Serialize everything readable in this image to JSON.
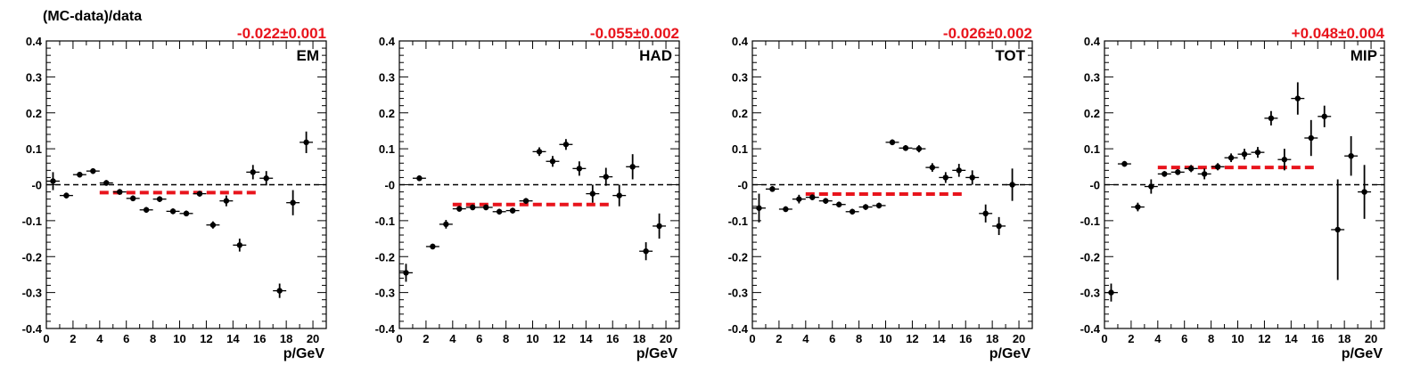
{
  "figure": {
    "ylabel": "(MC-data)/data",
    "colors": {
      "points": "#000000",
      "fit": "#e8141c",
      "zero_line": "#000000"
    }
  },
  "chart_data": [
    {
      "type": "scatter",
      "panel": "EM",
      "fit_label": "-0.022±0.001",
      "fit": {
        "value": -0.022,
        "x_range": [
          4,
          16
        ]
      },
      "xlabel": "p/GeV",
      "xlim": [
        0,
        21
      ],
      "ylim": [
        -0.4,
        0.4
      ],
      "x_ticks": [
        0,
        2,
        4,
        6,
        8,
        10,
        12,
        14,
        16,
        18,
        20
      ],
      "y_ticks": [
        "-0.4",
        "-0.3",
        "-0.2",
        "-0.1",
        "-0",
        "0.1",
        "0.2",
        "0.3",
        "0.4"
      ],
      "points": [
        {
          "x": 0.5,
          "y": 0.01,
          "err": 0.025
        },
        {
          "x": 1.5,
          "y": -0.03,
          "err": 0.008
        },
        {
          "x": 2.5,
          "y": 0.028,
          "err": 0.008
        },
        {
          "x": 3.5,
          "y": 0.038,
          "err": 0.008
        },
        {
          "x": 4.5,
          "y": 0.005,
          "err": 0.008
        },
        {
          "x": 5.5,
          "y": -0.02,
          "err": 0.008
        },
        {
          "x": 6.5,
          "y": -0.038,
          "err": 0.008
        },
        {
          "x": 7.5,
          "y": -0.07,
          "err": 0.008
        },
        {
          "x": 8.5,
          "y": -0.04,
          "err": 0.008
        },
        {
          "x": 9.5,
          "y": -0.074,
          "err": 0.008
        },
        {
          "x": 10.5,
          "y": -0.08,
          "err": 0.008
        },
        {
          "x": 11.5,
          "y": -0.025,
          "err": 0.008
        },
        {
          "x": 12.5,
          "y": -0.112,
          "err": 0.01
        },
        {
          "x": 13.5,
          "y": -0.045,
          "err": 0.015
        },
        {
          "x": 14.5,
          "y": -0.168,
          "err": 0.018
        },
        {
          "x": 15.5,
          "y": 0.035,
          "err": 0.02
        },
        {
          "x": 16.5,
          "y": 0.018,
          "err": 0.02
        },
        {
          "x": 17.5,
          "y": -0.295,
          "err": 0.02
        },
        {
          "x": 18.5,
          "y": -0.05,
          "err": 0.035
        },
        {
          "x": 19.5,
          "y": 0.118,
          "err": 0.03
        }
      ]
    },
    {
      "type": "scatter",
      "panel": "HAD",
      "fit_label": "-0.055±0.002",
      "fit": {
        "value": -0.055,
        "x_range": [
          4,
          16
        ]
      },
      "xlabel": "p/GeV",
      "xlim": [
        0,
        21
      ],
      "ylim": [
        -0.4,
        0.4
      ],
      "x_ticks": [
        0,
        2,
        4,
        6,
        8,
        10,
        12,
        14,
        16,
        18,
        20
      ],
      "y_ticks": [
        "-0.4",
        "-0.3",
        "-0.2",
        "-0.1",
        "-0",
        "0.1",
        "0.2",
        "0.3",
        "0.4"
      ],
      "points": [
        {
          "x": 0.5,
          "y": -0.245,
          "err": 0.025
        },
        {
          "x": 1.5,
          "y": 0.018,
          "err": 0.008
        },
        {
          "x": 2.5,
          "y": -0.172,
          "err": 0.008
        },
        {
          "x": 3.5,
          "y": -0.11,
          "err": 0.012
        },
        {
          "x": 4.5,
          "y": -0.067,
          "err": 0.008
        },
        {
          "x": 5.5,
          "y": -0.063,
          "err": 0.008
        },
        {
          "x": 6.5,
          "y": -0.063,
          "err": 0.008
        },
        {
          "x": 7.5,
          "y": -0.075,
          "err": 0.008
        },
        {
          "x": 8.5,
          "y": -0.072,
          "err": 0.008
        },
        {
          "x": 9.5,
          "y": -0.045,
          "err": 0.008
        },
        {
          "x": 10.5,
          "y": 0.092,
          "err": 0.012
        },
        {
          "x": 11.5,
          "y": 0.065,
          "err": 0.015
        },
        {
          "x": 12.5,
          "y": 0.112,
          "err": 0.015
        },
        {
          "x": 13.5,
          "y": 0.045,
          "err": 0.02
        },
        {
          "x": 14.5,
          "y": -0.025,
          "err": 0.025
        },
        {
          "x": 15.5,
          "y": 0.022,
          "err": 0.025
        },
        {
          "x": 16.5,
          "y": -0.03,
          "err": 0.03
        },
        {
          "x": 17.5,
          "y": 0.05,
          "err": 0.035
        },
        {
          "x": 18.5,
          "y": -0.185,
          "err": 0.025
        },
        {
          "x": 19.5,
          "y": -0.115,
          "err": 0.035
        }
      ]
    },
    {
      "type": "scatter",
      "panel": "TOT",
      "fit_label": "-0.026±0.002",
      "fit": {
        "value": -0.026,
        "x_range": [
          4,
          16
        ]
      },
      "xlabel": "p/GeV",
      "xlim": [
        0,
        21
      ],
      "ylim": [
        -0.4,
        0.4
      ],
      "x_ticks": [
        0,
        2,
        4,
        6,
        8,
        10,
        12,
        14,
        16,
        18,
        20
      ],
      "y_ticks": [
        "-0.4",
        "-0.3",
        "-0.2",
        "-0.1",
        "-0",
        "0.1",
        "0.2",
        "0.3",
        "0.4"
      ],
      "points": [
        {
          "x": 0.5,
          "y": -0.065,
          "err": 0.04
        },
        {
          "x": 1.5,
          "y": -0.012,
          "err": 0.008
        },
        {
          "x": 2.5,
          "y": -0.068,
          "err": 0.008
        },
        {
          "x": 3.5,
          "y": -0.04,
          "err": 0.012
        },
        {
          "x": 4.5,
          "y": -0.035,
          "err": 0.008
        },
        {
          "x": 5.5,
          "y": -0.045,
          "err": 0.008
        },
        {
          "x": 6.5,
          "y": -0.055,
          "err": 0.008
        },
        {
          "x": 7.5,
          "y": -0.075,
          "err": 0.008
        },
        {
          "x": 8.5,
          "y": -0.062,
          "err": 0.008
        },
        {
          "x": 9.5,
          "y": -0.058,
          "err": 0.008
        },
        {
          "x": 10.5,
          "y": 0.118,
          "err": 0.008
        },
        {
          "x": 11.5,
          "y": 0.102,
          "err": 0.008
        },
        {
          "x": 12.5,
          "y": 0.1,
          "err": 0.01
        },
        {
          "x": 13.5,
          "y": 0.048,
          "err": 0.012
        },
        {
          "x": 14.5,
          "y": 0.02,
          "err": 0.015
        },
        {
          "x": 15.5,
          "y": 0.04,
          "err": 0.018
        },
        {
          "x": 16.5,
          "y": 0.02,
          "err": 0.02
        },
        {
          "x": 17.5,
          "y": -0.08,
          "err": 0.025
        },
        {
          "x": 18.5,
          "y": -0.115,
          "err": 0.025
        },
        {
          "x": 19.5,
          "y": 0.0,
          "err": 0.045
        }
      ]
    },
    {
      "type": "scatter",
      "panel": "MIP",
      "fit_label": "+0.048±0.004",
      "fit": {
        "value": 0.048,
        "x_range": [
          4,
          16
        ]
      },
      "xlabel": "p/GeV",
      "xlim": [
        0,
        21
      ],
      "ylim": [
        -0.4,
        0.4
      ],
      "x_ticks": [
        0,
        2,
        4,
        6,
        8,
        10,
        12,
        14,
        16,
        18,
        20
      ],
      "y_ticks": [
        "-0.4",
        "-0.3",
        "-0.2",
        "-0.1",
        "-0",
        "0.1",
        "0.2",
        "0.3",
        "0.4"
      ],
      "points": [
        {
          "x": 0.5,
          "y": -0.3,
          "err": 0.025
        },
        {
          "x": 1.5,
          "y": 0.058,
          "err": 0.008
        },
        {
          "x": 2.5,
          "y": -0.062,
          "err": 0.012
        },
        {
          "x": 3.5,
          "y": -0.005,
          "err": 0.02
        },
        {
          "x": 4.5,
          "y": 0.03,
          "err": 0.008
        },
        {
          "x": 5.5,
          "y": 0.035,
          "err": 0.008
        },
        {
          "x": 6.5,
          "y": 0.045,
          "err": 0.01
        },
        {
          "x": 7.5,
          "y": 0.03,
          "err": 0.015
        },
        {
          "x": 8.5,
          "y": 0.05,
          "err": 0.01
        },
        {
          "x": 9.5,
          "y": 0.075,
          "err": 0.012
        },
        {
          "x": 10.5,
          "y": 0.085,
          "err": 0.015
        },
        {
          "x": 11.5,
          "y": 0.09,
          "err": 0.015
        },
        {
          "x": 12.5,
          "y": 0.185,
          "err": 0.02
        },
        {
          "x": 13.5,
          "y": 0.07,
          "err": 0.03
        },
        {
          "x": 14.5,
          "y": 0.24,
          "err": 0.045
        },
        {
          "x": 15.5,
          "y": 0.13,
          "err": 0.05
        },
        {
          "x": 16.5,
          "y": 0.19,
          "err": 0.03
        },
        {
          "x": 17.5,
          "y": -0.125,
          "err": 0.14
        },
        {
          "x": 18.5,
          "y": 0.08,
          "err": 0.055
        },
        {
          "x": 19.5,
          "y": -0.02,
          "err": 0.075
        }
      ]
    }
  ]
}
